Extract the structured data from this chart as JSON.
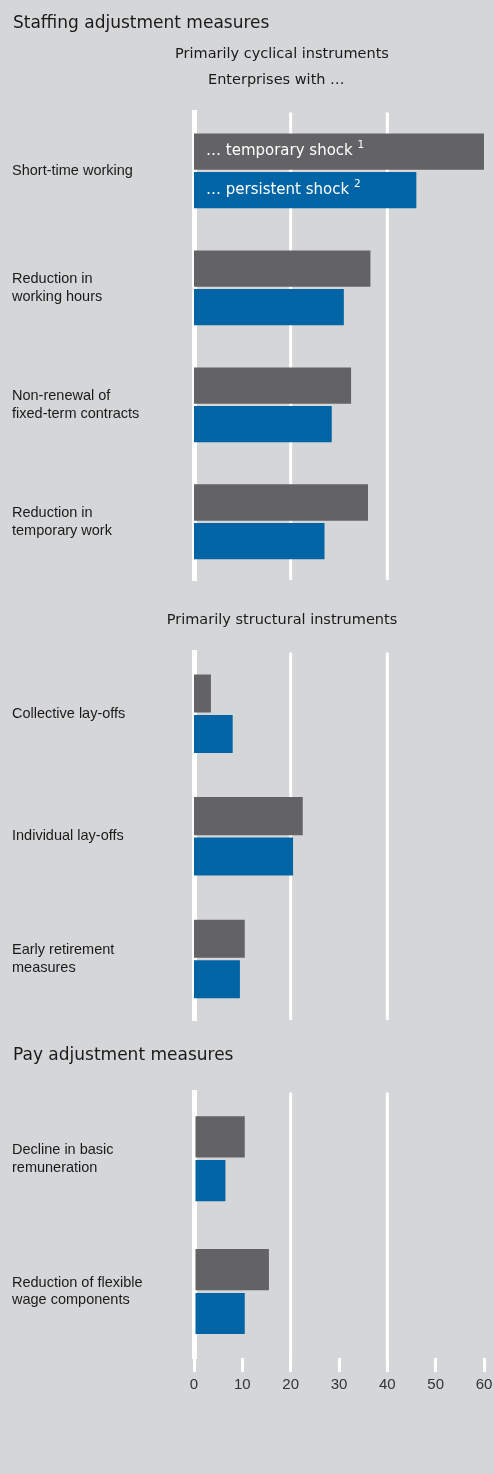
{
  "chart_data": [
    {
      "type": "bar",
      "orientation": "horizontal",
      "title": "Staffing adjustment measures",
      "subtitle": "Primarily cyclical instruments",
      "legend_title": "Enterprises with …",
      "categories": [
        "Short-time working",
        "Reduction in\nworking hours",
        "Non-renewal of\nfixed-term contracts",
        "Reduction in\ntemporary work"
      ],
      "series": [
        {
          "name": "… temporary shock $^{1}$",
          "color": "#636366",
          "values": [
            60,
            36.5,
            32.5,
            36
          ]
        },
        {
          "name": "… persistent shock $^{2}$",
          "color": "#0064a5",
          "values": [
            46,
            31,
            28.5,
            27
          ]
        }
      ],
      "xlim": [
        0,
        60
      ],
      "xticks": [
        0,
        10,
        20,
        30,
        40,
        50,
        60
      ],
      "ref_lines": [
        {
          "axis": "x",
          "value": 20,
          "color": "#ffffff"
        },
        {
          "axis": "x",
          "value": 40,
          "color": "#ffffff"
        }
      ],
      "tick_labels": "y"
    },
    {
      "type": "bar",
      "orientation": "horizontal",
      "subtitle": "Primarily structural instruments",
      "categories": [
        "Collective lay-offs",
        "Individual lay-offs",
        "Early retirement\nmeasures"
      ],
      "series": [
        {
          "color": "#636366",
          "values": [
            3.5,
            22.5,
            10.5
          ]
        },
        {
          "color": "#0064a5",
          "values": [
            8,
            20.5,
            9.5
          ]
        }
      ],
      "xlim": [
        0,
        60
      ],
      "xticks": [
        0,
        10,
        20,
        30,
        40,
        50,
        60
      ],
      "ref_lines": [
        {
          "axis": "x",
          "value": 20,
          "color": "#ffffff"
        },
        {
          "axis": "x",
          "value": 40,
          "color": "#ffffff"
        }
      ],
      "tick_labels": "y"
    },
    {
      "type": "bar",
      "orientation": "horizontal",
      "title": "Pay adjustment measures",
      "categories": [
        "Decline in basic\nremuneration",
        "Reduction of flexible\nwage components"
      ],
      "series": [
        {
          "color": "#636366",
          "values": [
            10.5,
            15.5
          ]
        },
        {
          "color": "#0064a5",
          "values": [
            6.5,
            10.5
          ]
        }
      ],
      "xlim": [
        0,
        60
      ],
      "xticks": [
        0,
        10,
        20,
        30,
        40,
        50,
        60
      ],
      "ref_lines": [
        {
          "axis": "x",
          "value": 20,
          "color": "#ffffff"
        },
        {
          "axis": "x",
          "value": 40,
          "color": "#ffffff"
        }
      ]
    }
  ]
}
